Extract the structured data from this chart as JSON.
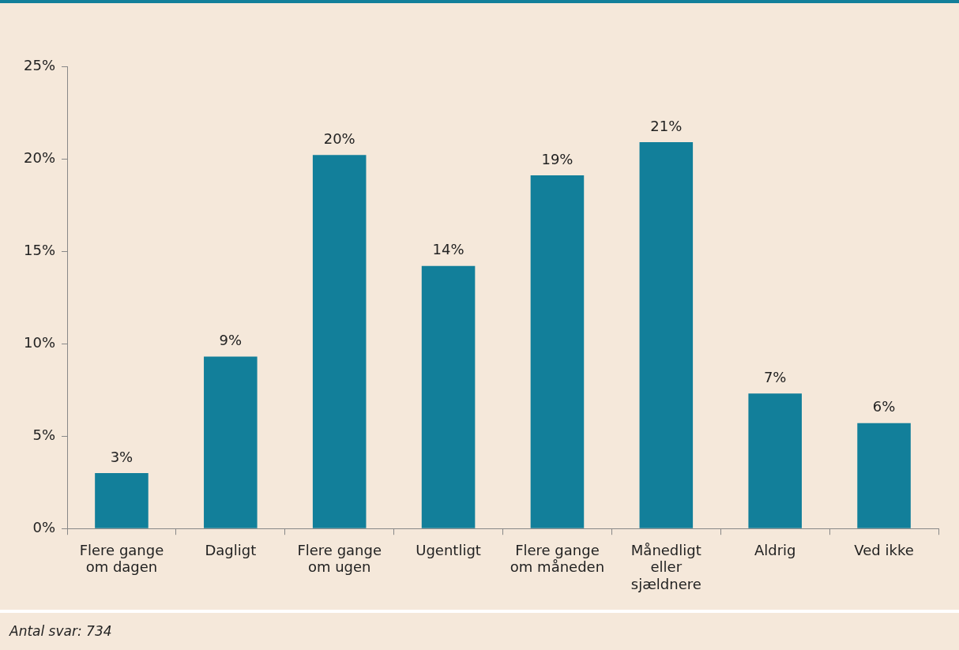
{
  "chart_data": {
    "type": "bar",
    "categories": [
      "Flere gange om dagen",
      "Dagligt",
      "Flere gange om ugen",
      "Ugentligt",
      "Flere gange om måneden",
      "Månedligt eller sjældnere",
      "Aldrig",
      "Ved ikke"
    ],
    "values": [
      3.0,
      9.3,
      20.2,
      14.2,
      19.1,
      20.9,
      7.3,
      5.7
    ],
    "value_labels": [
      "3%",
      "9%",
      "20%",
      "14%",
      "19%",
      "21%",
      "7%",
      "6%"
    ],
    "color": "#127f9a",
    "ylim": [
      0,
      25
    ],
    "yticks": [
      {
        "value": 0,
        "label": "0%"
      },
      {
        "value": 5,
        "label": "5%"
      },
      {
        "value": 10,
        "label": "10%"
      },
      {
        "value": 15,
        "label": "15%"
      },
      {
        "value": 20,
        "label": "20%"
      },
      {
        "value": 25,
        "label": "25%"
      }
    ],
    "grid": false,
    "legend": false,
    "annotations": [
      "Antal svar: 734"
    ]
  }
}
